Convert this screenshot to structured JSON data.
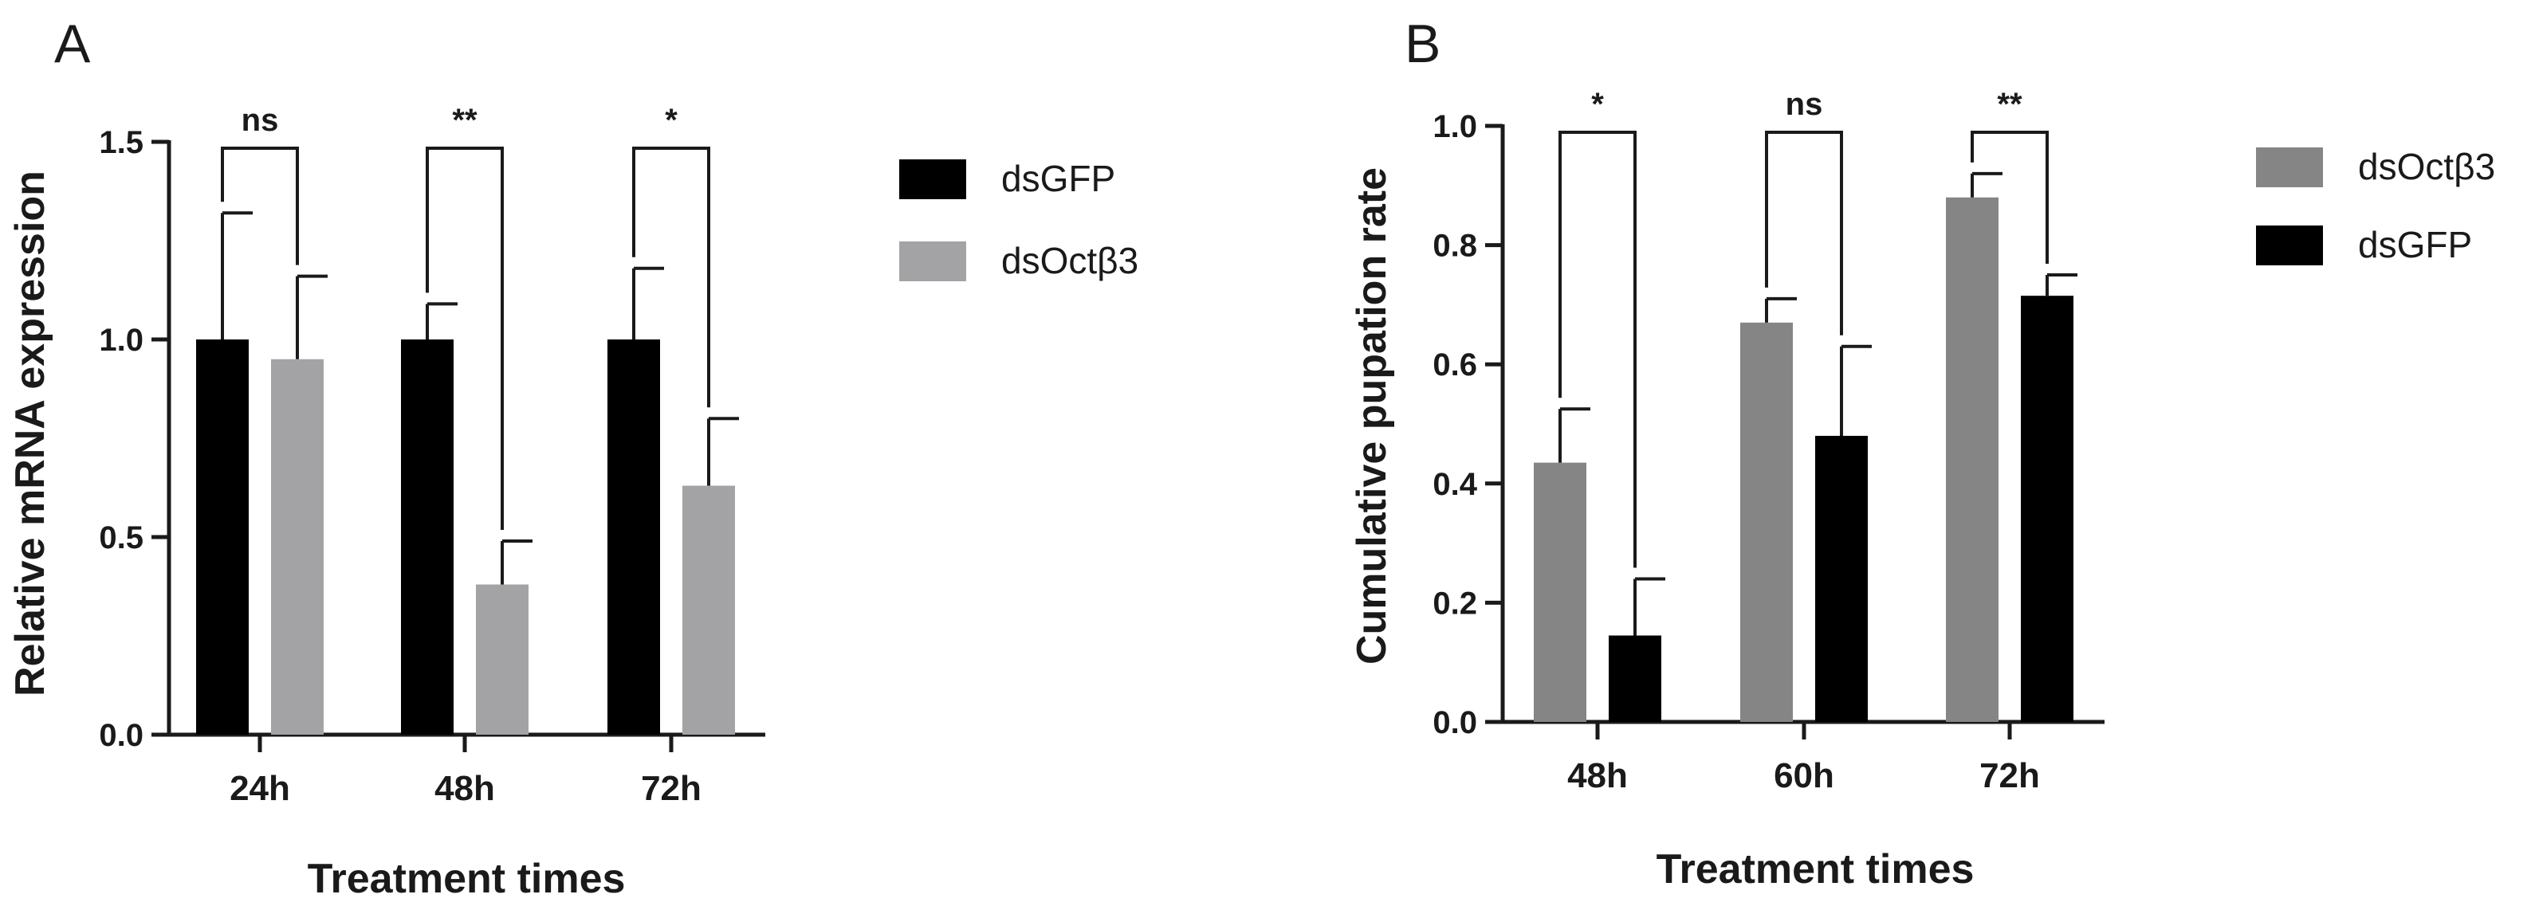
{
  "chart_data": [
    {
      "panel": "A",
      "type": "bar",
      "categories": [
        "24h",
        "48h",
        "72h"
      ],
      "xlabel": "Treatment times",
      "ylabel": "Relative mRNA expression",
      "ylim": [
        0,
        1.5
      ],
      "yticks": [
        "0.0",
        "0.5",
        "1.0",
        "1.5"
      ],
      "grid": false,
      "legend_position": "right",
      "series": [
        {
          "name": "dsGFP",
          "color": "#000000",
          "values": [
            1.0,
            1.0,
            1.0
          ],
          "errors": [
            0.32,
            0.09,
            0.18
          ]
        },
        {
          "name": "dsOctβ3",
          "color": "#a3a3a6",
          "values": [
            0.95,
            0.38,
            0.63
          ],
          "errors": [
            0.21,
            0.11,
            0.17
          ]
        }
      ],
      "significance": [
        "ns",
        "**",
        "*"
      ]
    },
    {
      "panel": "B",
      "type": "bar",
      "categories": [
        "48h",
        "60h",
        "72h"
      ],
      "xlabel": "Treatment times",
      "ylabel": "Cumulative pupation rate",
      "ylim": [
        0,
        1.0
      ],
      "yticks": [
        "0.0",
        "0.2",
        "0.4",
        "0.6",
        "0.8",
        "1.0"
      ],
      "grid": false,
      "legend_position": "right",
      "series": [
        {
          "name": "dsOctβ3",
          "color": "#858585",
          "values": [
            0.435,
            0.67,
            0.88
          ],
          "errors": [
            0.09,
            0.04,
            0.04
          ]
        },
        {
          "name": "dsGFP",
          "color": "#000000",
          "values": [
            0.145,
            0.48,
            0.715
          ],
          "errors": [
            0.095,
            0.15,
            0.035
          ]
        }
      ],
      "significance": [
        "*",
        "ns",
        "**"
      ]
    }
  ]
}
